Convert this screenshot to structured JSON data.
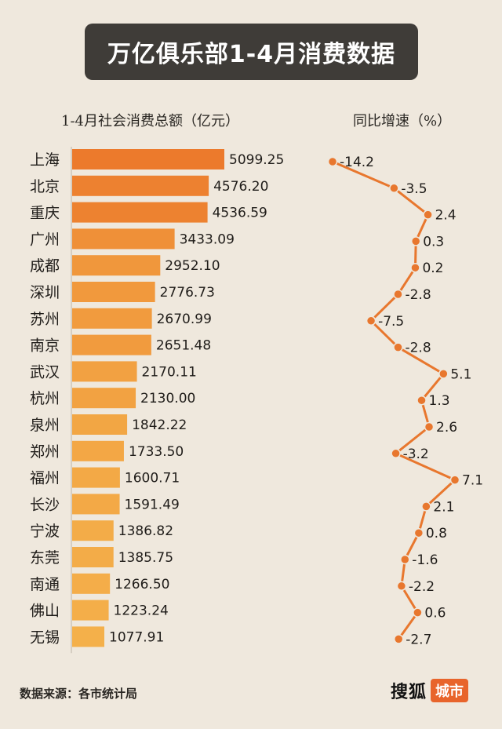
{
  "title": "万亿俱乐部1-4月消费数据",
  "header_left": "1-4月社会消费总额（亿元）",
  "header_right": "同比增速（%）",
  "source": "数据来源：各市统计局",
  "logo": {
    "main": "搜狐",
    "badge": "城市"
  },
  "colors": {
    "background": "#efe8dd",
    "title_bg": "#3f3c38",
    "bar_dark": "#ec7a2c",
    "bar_light": "#f4b04a",
    "line": "#e8772e",
    "badge": "#e8642b"
  },
  "chart_data": [
    {
      "type": "bar",
      "orientation": "horizontal",
      "title": "1-4月社会消费总额（亿元）",
      "categories": [
        "上海",
        "北京",
        "重庆",
        "广州",
        "成都",
        "深圳",
        "苏州",
        "南京",
        "武汉",
        "杭州",
        "泉州",
        "郑州",
        "福州",
        "长沙",
        "宁波",
        "东莞",
        "南通",
        "佛山",
        "无锡"
      ],
      "values": [
        5099.25,
        4576.2,
        4536.59,
        3433.09,
        2952.1,
        2776.73,
        2670.99,
        2651.48,
        2170.11,
        2130.0,
        1842.22,
        1733.5,
        1600.71,
        1591.49,
        1386.82,
        1385.75,
        1266.5,
        1223.24,
        1077.91
      ],
      "value_labels": [
        "5099.25",
        "4576.20",
        "4536.59",
        "3433.09",
        "2952.10",
        "2776.73",
        "2670.99",
        "2651.48",
        "2170.11",
        "2130.00",
        "1842.22",
        "1733.50",
        "1600.71",
        "1591.49",
        "1386.82",
        "1385.75",
        "1266.50",
        "1223.24",
        "1077.91"
      ],
      "xlim": [
        0,
        5099.25
      ]
    },
    {
      "type": "line",
      "orientation": "vertical",
      "title": "同比增速（%）",
      "categories": [
        "上海",
        "北京",
        "重庆",
        "广州",
        "成都",
        "深圳",
        "苏州",
        "南京",
        "武汉",
        "杭州",
        "泉州",
        "郑州",
        "福州",
        "长沙",
        "宁波",
        "东莞",
        "南通",
        "佛山",
        "无锡"
      ],
      "values": [
        -14.2,
        -3.5,
        2.4,
        0.3,
        0.2,
        -2.8,
        -7.5,
        -2.8,
        5.1,
        1.3,
        2.6,
        -3.2,
        7.1,
        2.1,
        0.8,
        -1.6,
        -2.2,
        0.6,
        -2.7
      ],
      "value_labels": [
        "-14.2",
        "-3.5",
        "2.4",
        "0.3",
        "0.2",
        "-2.8",
        "-7.5",
        "-2.8",
        "5.1",
        "1.3",
        "2.6",
        "-3.2",
        "7.1",
        "2.1",
        "0.8",
        "-1.6",
        "-2.2",
        "0.6",
        "-2.7"
      ],
      "xlim": [
        -14.2,
        7.1
      ]
    }
  ]
}
